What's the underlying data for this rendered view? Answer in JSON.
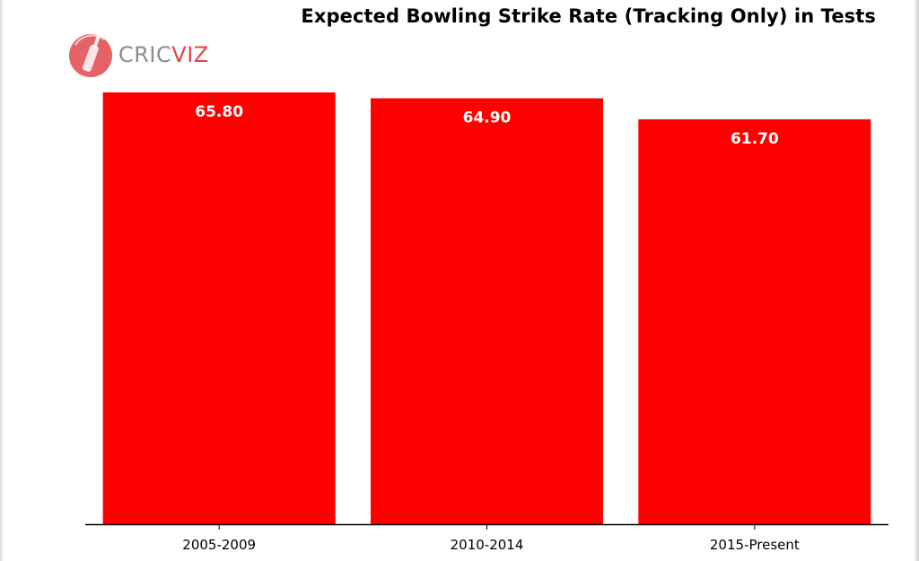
{
  "chart_data": {
    "type": "bar",
    "title": "Expected Bowling Strike Rate (Tracking Only) in Tests",
    "categories": [
      "2005-2009",
      "2010-2014",
      "2015-Present"
    ],
    "values": [
      65.8,
      64.9,
      61.7
    ],
    "data_labels": [
      "65.80",
      "64.90",
      "61.70"
    ],
    "xlabel": "",
    "ylabel": "",
    "ylim": [
      0,
      66.2
    ],
    "grid": false,
    "legend": "none",
    "bar_color": "#ff0000",
    "label_color": "#ffffff"
  },
  "logo": {
    "text_main": "CRIC",
    "text_accent": "VIZ",
    "icon": "cricket-bat-ball-icon",
    "primary_color": "#e0474c",
    "text_color": "#8c8c8c"
  }
}
